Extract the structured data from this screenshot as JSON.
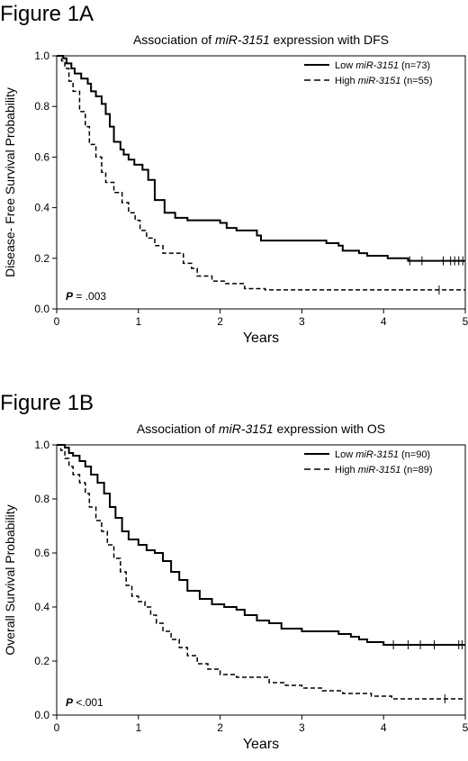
{
  "figure_labels": [
    "Figure 1A",
    "Figure 1B"
  ],
  "chart_data": [
    {
      "type": "line",
      "title_prefix": "Association of ",
      "title_italic": "miR-3151",
      "title_suffix": " expression with DFS",
      "xlabel": "Years",
      "ylabel": "Disease- Free Survival Probability",
      "xlim": [
        0,
        5
      ],
      "ylim": [
        0,
        1
      ],
      "xticks": [
        0,
        1,
        2,
        3,
        4,
        5
      ],
      "yticks": [
        "0.0",
        "0.2",
        "0.4",
        "0.6",
        "0.8",
        "1.0"
      ],
      "annotation_p_label": "P",
      "annotation_p_value": " = .003",
      "legend_position": "top-right",
      "series": [
        {
          "name": "Low miR-3151 (n=73)",
          "legend_prefix": "Low ",
          "legend_italic": "miR-3151",
          "legend_suffix": " (n=73)",
          "style": "solid",
          "steps": [
            [
              0,
              1.0
            ],
            [
              0.08,
              0.99
            ],
            [
              0.12,
              0.97
            ],
            [
              0.18,
              0.95
            ],
            [
              0.22,
              0.93
            ],
            [
              0.3,
              0.91
            ],
            [
              0.38,
              0.89
            ],
            [
              0.42,
              0.86
            ],
            [
              0.48,
              0.84
            ],
            [
              0.55,
              0.81
            ],
            [
              0.6,
              0.77
            ],
            [
              0.65,
              0.72
            ],
            [
              0.7,
              0.66
            ],
            [
              0.78,
              0.63
            ],
            [
              0.82,
              0.61
            ],
            [
              0.88,
              0.59
            ],
            [
              0.95,
              0.57
            ],
            [
              1.05,
              0.55
            ],
            [
              1.12,
              0.51
            ],
            [
              1.2,
              0.43
            ],
            [
              1.32,
              0.38
            ],
            [
              1.45,
              0.36
            ],
            [
              1.6,
              0.35
            ],
            [
              2.0,
              0.34
            ],
            [
              2.08,
              0.32
            ],
            [
              2.2,
              0.31
            ],
            [
              2.45,
              0.29
            ],
            [
              2.5,
              0.27
            ],
            [
              3.3,
              0.26
            ],
            [
              3.45,
              0.25
            ],
            [
              3.5,
              0.23
            ],
            [
              3.7,
              0.22
            ],
            [
              3.8,
              0.21
            ],
            [
              4.05,
              0.2
            ],
            [
              4.3,
              0.19
            ],
            [
              5.0,
              0.19
            ]
          ],
          "censor_x": [
            4.32,
            4.47,
            4.73,
            4.82,
            4.87,
            4.92,
            4.97
          ]
        },
        {
          "name": "High miR-3151 (n=55)",
          "legend_prefix": "High ",
          "legend_italic": "miR-3151",
          "legend_suffix": " (n=55)",
          "style": "dashed",
          "steps": [
            [
              0,
              1.0
            ],
            [
              0.06,
              0.98
            ],
            [
              0.1,
              0.95
            ],
            [
              0.15,
              0.9
            ],
            [
              0.2,
              0.86
            ],
            [
              0.28,
              0.78
            ],
            [
              0.35,
              0.72
            ],
            [
              0.4,
              0.65
            ],
            [
              0.48,
              0.6
            ],
            [
              0.55,
              0.54
            ],
            [
              0.6,
              0.5
            ],
            [
              0.7,
              0.46
            ],
            [
              0.8,
              0.42
            ],
            [
              0.88,
              0.38
            ],
            [
              0.96,
              0.35
            ],
            [
              1.02,
              0.31
            ],
            [
              1.1,
              0.28
            ],
            [
              1.2,
              0.25
            ],
            [
              1.3,
              0.22
            ],
            [
              1.55,
              0.18
            ],
            [
              1.65,
              0.16
            ],
            [
              1.72,
              0.13
            ],
            [
              1.9,
              0.11
            ],
            [
              2.05,
              0.1
            ],
            [
              2.3,
              0.08
            ],
            [
              2.55,
              0.075
            ],
            [
              5.0,
              0.075
            ]
          ],
          "censor_x": [
            4.68
          ]
        }
      ]
    },
    {
      "type": "line",
      "title_prefix": "Association of ",
      "title_italic": "miR-3151",
      "title_suffix": " expression with OS",
      "xlabel": "Years",
      "ylabel": "Overall Survival Probability",
      "xlim": [
        0,
        5
      ],
      "ylim": [
        0,
        1
      ],
      "xticks": [
        0,
        1,
        2,
        3,
        4,
        5
      ],
      "yticks": [
        "0.0",
        "0.2",
        "0.4",
        "0.6",
        "0.8",
        "1.0"
      ],
      "annotation_p_label": "P",
      "annotation_p_value": " <.001",
      "legend_position": "top-right",
      "series": [
        {
          "name": "Low miR-3151 (n=90)",
          "legend_prefix": "Low ",
          "legend_italic": "miR-3151",
          "legend_suffix": " (n=90)",
          "style": "solid",
          "steps": [
            [
              0,
              1.0
            ],
            [
              0.1,
              0.99
            ],
            [
              0.15,
              0.97
            ],
            [
              0.2,
              0.96
            ],
            [
              0.28,
              0.94
            ],
            [
              0.35,
              0.92
            ],
            [
              0.42,
              0.89
            ],
            [
              0.5,
              0.86
            ],
            [
              0.58,
              0.82
            ],
            [
              0.65,
              0.77
            ],
            [
              0.72,
              0.73
            ],
            [
              0.8,
              0.68
            ],
            [
              0.88,
              0.65
            ],
            [
              1.0,
              0.63
            ],
            [
              1.1,
              0.61
            ],
            [
              1.2,
              0.6
            ],
            [
              1.3,
              0.57
            ],
            [
              1.4,
              0.53
            ],
            [
              1.5,
              0.5
            ],
            [
              1.6,
              0.46
            ],
            [
              1.75,
              0.43
            ],
            [
              1.9,
              0.41
            ],
            [
              2.05,
              0.4
            ],
            [
              2.2,
              0.39
            ],
            [
              2.3,
              0.37
            ],
            [
              2.45,
              0.35
            ],
            [
              2.6,
              0.34
            ],
            [
              2.75,
              0.32
            ],
            [
              3.0,
              0.31
            ],
            [
              3.45,
              0.3
            ],
            [
              3.6,
              0.29
            ],
            [
              3.7,
              0.28
            ],
            [
              3.8,
              0.27
            ],
            [
              4.0,
              0.26
            ],
            [
              5.0,
              0.26
            ]
          ],
          "censor_x": [
            4.12,
            4.3,
            4.45,
            4.62,
            4.92,
            4.96
          ]
        },
        {
          "name": "High miR-3151 (n=89)",
          "legend_prefix": "High ",
          "legend_italic": "miR-3151",
          "legend_suffix": " (n=89)",
          "style": "dashed",
          "steps": [
            [
              0,
              1.0
            ],
            [
              0.05,
              0.98
            ],
            [
              0.1,
              0.95
            ],
            [
              0.15,
              0.92
            ],
            [
              0.2,
              0.89
            ],
            [
              0.28,
              0.86
            ],
            [
              0.35,
              0.82
            ],
            [
              0.4,
              0.77
            ],
            [
              0.48,
              0.72
            ],
            [
              0.55,
              0.68
            ],
            [
              0.62,
              0.63
            ],
            [
              0.7,
              0.58
            ],
            [
              0.78,
              0.53
            ],
            [
              0.85,
              0.48
            ],
            [
              0.92,
              0.44
            ],
            [
              1.0,
              0.42
            ],
            [
              1.08,
              0.4
            ],
            [
              1.15,
              0.37
            ],
            [
              1.22,
              0.34
            ],
            [
              1.3,
              0.31
            ],
            [
              1.4,
              0.28
            ],
            [
              1.5,
              0.25
            ],
            [
              1.6,
              0.22
            ],
            [
              1.72,
              0.19
            ],
            [
              1.85,
              0.17
            ],
            [
              2.0,
              0.15
            ],
            [
              2.2,
              0.14
            ],
            [
              2.6,
              0.12
            ],
            [
              2.8,
              0.11
            ],
            [
              3.0,
              0.1
            ],
            [
              3.25,
              0.09
            ],
            [
              3.5,
              0.08
            ],
            [
              3.85,
              0.07
            ],
            [
              4.1,
              0.06
            ],
            [
              5.0,
              0.06
            ]
          ],
          "censor_x": [
            4.75
          ]
        }
      ]
    }
  ]
}
